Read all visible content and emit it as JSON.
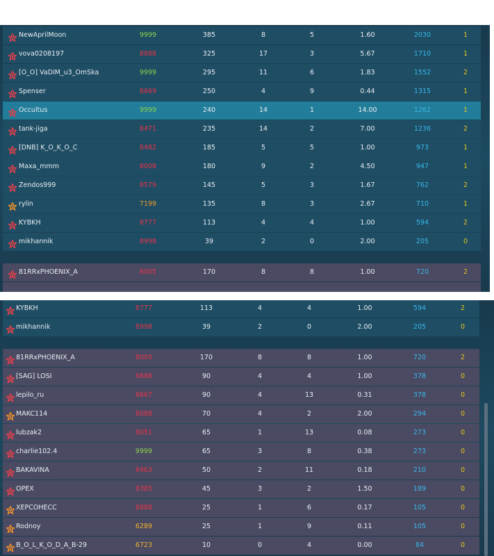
{
  "panels": [
    {
      "highlighted_row": 4,
      "team1": [
        [
          "NewAprilMoon",
          "9999",
          "385",
          "8",
          "5",
          "1.60",
          "2030",
          "1"
        ],
        [
          "vova0208197",
          "8888",
          "325",
          "17",
          "3",
          "5.67",
          "1710",
          "1"
        ],
        [
          "[O_O] VaDiM_u3_OmSka",
          "9999",
          "295",
          "11",
          "6",
          "1.83",
          "1552",
          "2"
        ],
        [
          "Spenser",
          "8669",
          "250",
          "4",
          "9",
          "0.44",
          "1315",
          "1"
        ],
        [
          "Occultus",
          "9999",
          "240",
          "14",
          "1",
          "14.00",
          "1262",
          "1"
        ],
        [
          "tank-jiga",
          "8471",
          "235",
          "14",
          "2",
          "7.00",
          "1236",
          "2"
        ],
        [
          "[DNB] K_O_K_O_C",
          "8482",
          "185",
          "5",
          "5",
          "1.00",
          "973",
          "1"
        ],
        [
          "Maxa_mmm",
          "8008",
          "180",
          "9",
          "2",
          "4.50",
          "947",
          "1"
        ],
        [
          "Zendos999",
          "8579",
          "145",
          "5",
          "3",
          "1.67",
          "762",
          "2"
        ],
        [
          "rylin",
          "7199",
          "135",
          "8",
          "3",
          "2.67",
          "710",
          "1"
        ],
        [
          "KYBKH",
          "8777",
          "113",
          "4",
          "4",
          "1.00",
          "594",
          "2"
        ],
        [
          "mikhannik",
          "8998",
          "39",
          "2",
          "0",
          "2.00",
          "205",
          "0"
        ]
      ],
      "team2": [
        [
          "81RRxPHOENIX_A",
          "8005",
          "170",
          "8",
          "8",
          "1.00",
          "720",
          "2"
        ]
      ]
    },
    {
      "team1": [
        [
          "KYBKH",
          "8777",
          "113",
          "4",
          "4",
          "1.00",
          "594",
          "2"
        ],
        [
          "mikhannik",
          "8998",
          "39",
          "2",
          "0",
          "2.00",
          "205",
          "0"
        ]
      ],
      "team2": [
        [
          "81RRxPHOENIX_A",
          "8005",
          "170",
          "8",
          "8",
          "1.00",
          "720",
          "2"
        ],
        [
          "[SAG] LOSI",
          "8888",
          "90",
          "4",
          "4",
          "1.00",
          "378",
          "0"
        ],
        [
          "lepilo_ru",
          "8667",
          "90",
          "4",
          "13",
          "0.31",
          "378",
          "0"
        ],
        [
          "MAKC114",
          "8088",
          "70",
          "4",
          "2",
          "2.00",
          "294",
          "0"
        ],
        [
          "lubzak2",
          "8051",
          "65",
          "1",
          "13",
          "0.08",
          "273",
          "0"
        ],
        [
          "charlie102.4",
          "9999",
          "65",
          "3",
          "8",
          "0.38",
          "273",
          "0"
        ],
        [
          "BAKAVINA",
          "8463",
          "50",
          "2",
          "11",
          "0.18",
          "210",
          "0"
        ],
        [
          "OPEX",
          "8385",
          "45",
          "3",
          "2",
          "1.50",
          "189",
          "0"
        ],
        [
          "XEPCOHECC",
          "8888",
          "25",
          "1",
          "6",
          "0.17",
          "105",
          "0"
        ],
        [
          "Rodnoy",
          "6289",
          "25",
          "1",
          "9",
          "0.11",
          "105",
          "0"
        ],
        [
          "B_O_L_K_O_D_A_B-29",
          "6723",
          "10",
          "0",
          "4",
          "0.00",
          "84",
          "0"
        ]
      ]
    }
  ]
}
